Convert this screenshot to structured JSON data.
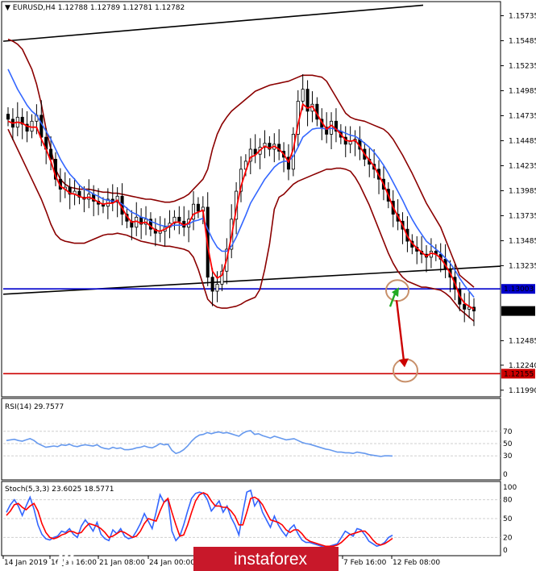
{
  "header": {
    "symbol": "EURUSD,H4",
    "ohlc": "1.12788 1.12789 1.12781 1.12782"
  },
  "colors": {
    "candle": "#000000",
    "bollinger": "#8b0000",
    "ma_fast": "#ff0000",
    "ma_slow": "#3366ff",
    "support": "#0000cc",
    "target": "#cc0000",
    "circle": "#c8906a",
    "up_arrow": "#22aa22",
    "down_arrow": "#cc0000",
    "rsi": "#6699ee",
    "stoch_main": "#3366ff",
    "stoch_signal": "#ff0000",
    "watermark_bg": "#c8182a"
  },
  "chart_data": [
    {
      "panel": "main",
      "type": "line",
      "price_scale": [
        "1.15735",
        "1.15485",
        "1.15235",
        "1.14985",
        "1.14735",
        "1.14485",
        "1.14235",
        "1.13985",
        "1.13735",
        "1.13485",
        "1.13235",
        "1.12485",
        "1.12240",
        "1.11990"
      ],
      "ylim": [
        1.1194,
        1.1586
      ],
      "markers": [
        {
          "label": "1.13003",
          "value": 1.13003,
          "color": "#0000cc"
        },
        {
          "label": "1.12782",
          "value": 1.12782,
          "color": "#000000"
        },
        {
          "label": "1.12155",
          "value": 1.12155,
          "color": "#cc0000"
        }
      ],
      "close": [
        1.147,
        1.1462,
        1.1472,
        1.1465,
        1.1458,
        1.1468,
        1.1474,
        1.1452,
        1.144,
        1.143,
        1.141,
        1.14,
        1.1402,
        1.1395,
        1.1398,
        1.1392,
        1.139,
        1.1395,
        1.1388,
        1.1385,
        1.1383,
        1.139,
        1.1387,
        1.1393,
        1.1375,
        1.1368,
        1.1362,
        1.1372,
        1.1365,
        1.137,
        1.136,
        1.1356,
        1.1358,
        1.1362,
        1.1366,
        1.1372,
        1.1368,
        1.1362,
        1.137,
        1.1385,
        1.1378,
        1.1382,
        1.1312,
        1.1298,
        1.1305,
        1.1318,
        1.134,
        1.137,
        1.1398,
        1.142,
        1.1428,
        1.144,
        1.1435,
        1.1442,
        1.1446,
        1.144,
        1.1445,
        1.1438,
        1.1432,
        1.142,
        1.1455,
        1.1488,
        1.15,
        1.1478,
        1.1485,
        1.147,
        1.1462,
        1.1455,
        1.1468,
        1.1458,
        1.1452,
        1.1445,
        1.1448,
        1.145,
        1.144,
        1.143,
        1.1425,
        1.142,
        1.141,
        1.14,
        1.1388,
        1.1375,
        1.1368,
        1.136,
        1.1348,
        1.1342,
        1.1338,
        1.1335,
        1.1332,
        1.1338,
        1.1335,
        1.133,
        1.132,
        1.1312,
        1.13,
        1.1285,
        1.128,
        1.1282,
        1.12782
      ],
      "ma_fast": [
        1.1468,
        1.1466,
        1.1467,
        1.1466,
        1.1463,
        1.1462,
        1.1462,
        1.145,
        1.144,
        1.1428,
        1.1413,
        1.1403,
        1.14,
        1.1396,
        1.1395,
        1.1393,
        1.1391,
        1.1392,
        1.139,
        1.1387,
        1.1385,
        1.1386,
        1.1386,
        1.1389,
        1.1381,
        1.1373,
        1.1367,
        1.1368,
        1.1366,
        1.1367,
        1.1363,
        1.1359,
        1.1358,
        1.136,
        1.1363,
        1.1367,
        1.1367,
        1.1364,
        1.1366,
        1.1375,
        1.1377,
        1.1379,
        1.1343,
        1.1318,
        1.1311,
        1.1314,
        1.133,
        1.1353,
        1.138,
        1.1403,
        1.1418,
        1.1432,
        1.1434,
        1.1439,
        1.1443,
        1.1441,
        1.1443,
        1.144,
        1.1435,
        1.1427,
        1.144,
        1.1465,
        1.1485,
        1.1481,
        1.1483,
        1.1475,
        1.1467,
        1.146,
        1.1464,
        1.146,
        1.1455,
        1.1449,
        1.1448,
        1.1449,
        1.1443,
        1.1435,
        1.1429,
        1.1423,
        1.1414,
        1.1405,
        1.1394,
        1.1382,
        1.1373,
        1.1364,
        1.1353,
        1.1346,
        1.1341,
        1.1337,
        1.1333,
        1.1336,
        1.1335,
        1.1331,
        1.1324,
        1.1316,
        1.1306,
        1.1293,
        1.1286,
        1.1283,
        1.128
      ],
      "ma_slow": [
        1.152,
        1.151,
        1.15,
        1.1492,
        1.1484,
        1.1478,
        1.1474,
        1.1466,
        1.1458,
        1.145,
        1.144,
        1.143,
        1.1422,
        1.1415,
        1.141,
        1.1404,
        1.14,
        1.1398,
        1.1395,
        1.1393,
        1.139,
        1.1389,
        1.1388,
        1.1388,
        1.1385,
        1.1381,
        1.1377,
        1.1375,
        1.1372,
        1.1371,
        1.1368,
        1.1366,
        1.1364,
        1.1363,
        1.1363,
        1.1364,
        1.1364,
        1.1364,
        1.1365,
        1.1368,
        1.1369,
        1.1371,
        1.136,
        1.135,
        1.1342,
        1.1338,
        1.1338,
        1.1343,
        1.1352,
        1.1363,
        1.1374,
        1.1386,
        1.1394,
        1.1402,
        1.141,
        1.1416,
        1.1422,
        1.1426,
        1.1428,
        1.1428,
        1.1433,
        1.1442,
        1.1452,
        1.1456,
        1.146,
        1.1461,
        1.1461,
        1.146,
        1.1461,
        1.146,
        1.1458,
        1.1456,
        1.1454,
        1.1453,
        1.145,
        1.1446,
        1.1442,
        1.1437,
        1.1431,
        1.1424,
        1.1416,
        1.1407,
        1.1398,
        1.1389,
        1.1379,
        1.137,
        1.1362,
        1.1355,
        1.1348,
        1.1344,
        1.134,
        1.1336,
        1.1331,
        1.1326,
        1.1319,
        1.1311,
        1.1304,
        1.1298,
        1.1292
      ],
      "bb_upper": [
        1.155,
        1.1548,
        1.1545,
        1.154,
        1.153,
        1.152,
        1.1505,
        1.1485,
        1.146,
        1.144,
        1.142,
        1.141,
        1.1405,
        1.1402,
        1.1401,
        1.14,
        1.14,
        1.14,
        1.1399,
        1.1398,
        1.1397,
        1.1397,
        1.1396,
        1.1396,
        1.1395,
        1.1394,
        1.1393,
        1.1392,
        1.1391,
        1.139,
        1.139,
        1.1389,
        1.1388,
        1.1387,
        1.1387,
        1.1388,
        1.139,
        1.1392,
        1.1395,
        1.14,
        1.1405,
        1.141,
        1.142,
        1.144,
        1.1455,
        1.1465,
        1.1472,
        1.1478,
        1.1482,
        1.1486,
        1.149,
        1.1494,
        1.1498,
        1.15,
        1.1502,
        1.1504,
        1.1505,
        1.1506,
        1.1507,
        1.1508,
        1.151,
        1.1512,
        1.1514,
        1.1514,
        1.1514,
        1.1513,
        1.1512,
        1.1508,
        1.15,
        1.1492,
        1.1484,
        1.1476,
        1.1472,
        1.147,
        1.1469,
        1.1468,
        1.1466,
        1.1464,
        1.1462,
        1.146,
        1.1456,
        1.145,
        1.1442,
        1.1434,
        1.1425,
        1.1416,
        1.1406,
        1.1396,
        1.1386,
        1.1378,
        1.137,
        1.1362,
        1.135,
        1.1338,
        1.1326,
        1.1314,
        1.131,
        1.1306,
        1.1302
      ],
      "bb_lower": [
        1.146,
        1.145,
        1.144,
        1.143,
        1.142,
        1.141,
        1.14,
        1.139,
        1.1378,
        1.1365,
        1.1355,
        1.135,
        1.1348,
        1.1347,
        1.1346,
        1.1346,
        1.1346,
        1.1348,
        1.135,
        1.1352,
        1.1354,
        1.1355,
        1.1355,
        1.1356,
        1.1355,
        1.1354,
        1.1352,
        1.135,
        1.1348,
        1.1347,
        1.1346,
        1.1345,
        1.1344,
        1.1343,
        1.1343,
        1.1342,
        1.1341,
        1.134,
        1.1338,
        1.1332,
        1.132,
        1.1305,
        1.129,
        1.1285,
        1.1282,
        1.1281,
        1.1281,
        1.1282,
        1.1283,
        1.1285,
        1.1288,
        1.129,
        1.1292,
        1.13,
        1.132,
        1.1345,
        1.138,
        1.1392,
        1.1395,
        1.14,
        1.1405,
        1.1408,
        1.141,
        1.1412,
        1.1414,
        1.1416,
        1.1418,
        1.142,
        1.142,
        1.1421,
        1.1421,
        1.142,
        1.1418,
        1.1412,
        1.1404,
        1.1394,
        1.1384,
        1.1372,
        1.136,
        1.1348,
        1.1336,
        1.1326,
        1.1318,
        1.1312,
        1.1308,
        1.1306,
        1.1304,
        1.1302,
        1.1302,
        1.1301,
        1.13,
        1.1299,
        1.1296,
        1.1292,
        1.1286,
        1.128,
        1.1276,
        1.1272,
        1.1268
      ],
      "trend_upper": {
        "from": 1.1548,
        "to": 1.1584
      },
      "trend_lower": {
        "from": 1.1295,
        "to": 1.1323
      }
    },
    {
      "panel": "rsi",
      "type": "line",
      "title": "RSI(14) 29.7577",
      "levels": [
        "70",
        "50",
        "30",
        "0"
      ],
      "ylim": [
        0,
        100
      ],
      "values": [
        55,
        56,
        57,
        55,
        54,
        56,
        58,
        55,
        50,
        47,
        44,
        45,
        46,
        45,
        48,
        47,
        49,
        46,
        45,
        47,
        48,
        47,
        46,
        48,
        44,
        42,
        41,
        44,
        42,
        43,
        40,
        40,
        41,
        43,
        44,
        46,
        44,
        43,
        46,
        50,
        48,
        49,
        39,
        34,
        36,
        40,
        46,
        54,
        60,
        64,
        65,
        68,
        66,
        68,
        69,
        67,
        68,
        66,
        64,
        62,
        67,
        70,
        71,
        65,
        66,
        63,
        61,
        59,
        62,
        60,
        58,
        56,
        57,
        58,
        55,
        52,
        50,
        49,
        47,
        45,
        43,
        41,
        40,
        38,
        36,
        36,
        35,
        35,
        34,
        36,
        35,
        34,
        32,
        31,
        30,
        29,
        30,
        30,
        29.8
      ]
    },
    {
      "panel": "stoch",
      "type": "line",
      "title": "Stoch(5,3,3) 23.6025 18.5771",
      "levels": [
        "100",
        "80",
        "50",
        "20",
        "0"
      ],
      "ylim": [
        0,
        100
      ],
      "main": [
        60,
        72,
        80,
        70,
        55,
        70,
        84,
        65,
        40,
        25,
        18,
        16,
        20,
        22,
        30,
        28,
        34,
        25,
        20,
        38,
        48,
        40,
        30,
        44,
        25,
        18,
        15,
        32,
        26,
        34,
        22,
        18,
        20,
        30,
        42,
        58,
        46,
        34,
        60,
        88,
        76,
        80,
        30,
        15,
        22,
        40,
        62,
        82,
        90,
        92,
        90,
        80,
        62,
        70,
        78,
        60,
        70,
        52,
        40,
        24,
        60,
        92,
        95,
        70,
        80,
        60,
        48,
        36,
        54,
        40,
        30,
        22,
        34,
        40,
        26,
        16,
        12,
        12,
        10,
        8,
        6,
        5,
        6,
        8,
        10,
        20,
        30,
        26,
        22,
        34,
        32,
        24,
        14,
        10,
        6,
        8,
        12,
        20,
        23.6
      ],
      "signal": [
        55,
        62,
        72,
        74,
        68,
        64,
        70,
        74,
        62,
        42,
        28,
        20,
        18,
        20,
        24,
        26,
        30,
        29,
        26,
        28,
        36,
        42,
        40,
        38,
        34,
        28,
        20,
        22,
        26,
        30,
        28,
        24,
        20,
        22,
        30,
        42,
        50,
        48,
        46,
        62,
        76,
        82,
        60,
        40,
        22,
        24,
        40,
        60,
        78,
        88,
        91,
        88,
        78,
        70,
        70,
        68,
        68,
        62,
        54,
        40,
        40,
        60,
        82,
        84,
        80,
        72,
        60,
        48,
        46,
        44,
        40,
        32,
        28,
        32,
        32,
        26,
        18,
        14,
        12,
        10,
        8,
        6,
        6,
        6,
        8,
        12,
        18,
        24,
        26,
        28,
        30,
        30,
        24,
        16,
        10,
        8,
        10,
        14,
        18.6
      ]
    }
  ],
  "xaxis": {
    "labels": [
      "14 Jan 2019",
      "16 Jan 16:00",
      "21 Jan 08:00",
      "24 Jan 00:00",
      "7 Feb 16:00",
      "12 Feb 08:00"
    ]
  },
  "watermark": {
    "text": "instaforex"
  }
}
